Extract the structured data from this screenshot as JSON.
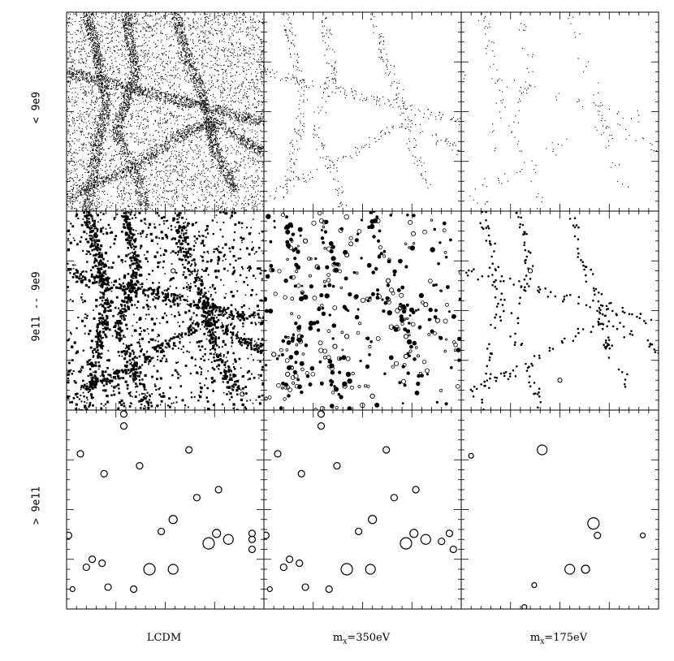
{
  "chart_data": {
    "type": "scatter",
    "layout": "3x3 grid of point-distribution panels, shared axes, no numeric tick labels",
    "tick_labels_shown": false,
    "row_labels": [
      "< 9e9",
      "9e11 -- 9e9",
      "> 9e11"
    ],
    "col_labels": {
      "lcdm": "LCDM",
      "m350": {
        "prefix": "m",
        "sub": "x",
        "suffix": "=350eV"
      },
      "m175": {
        "prefix": "m",
        "sub": "x",
        "suffix": "=175eV"
      }
    },
    "panels": [
      {
        "row": 0,
        "col": 0,
        "marker": "dot",
        "density": "very dense field with filamentary structure"
      },
      {
        "row": 0,
        "col": 1,
        "marker": "dot",
        "density": "sparse points along filaments"
      },
      {
        "row": 0,
        "col": 2,
        "marker": "dot",
        "density": "very sparse points along few filaments"
      },
      {
        "row": 1,
        "col": 0,
        "marker": "filled dot",
        "density": "dense"
      },
      {
        "row": 1,
        "col": 1,
        "marker": "small circles",
        "density": "moderate"
      },
      {
        "row": 1,
        "col": 2,
        "marker": "dot",
        "density": "sparse, along filaments"
      },
      {
        "row": 2,
        "col": 0,
        "marker": "open circle",
        "density": "~25 halos"
      },
      {
        "row": 2,
        "col": 1,
        "marker": "open circle",
        "density": "~25 halos"
      },
      {
        "row": 2,
        "col": 2,
        "marker": "open circle",
        "density": "~10 halos"
      }
    ],
    "halos_large": {
      "lcdm": [
        [
          0.29,
          0.02
        ],
        [
          0.07,
          0.22
        ],
        [
          0.29,
          0.08
        ],
        [
          0.42,
          0.8
        ],
        [
          0.72,
          0.67
        ],
        [
          0.37,
          0.28
        ],
        [
          0.19,
          0.32
        ],
        [
          0.13,
          0.75
        ],
        [
          0.62,
          0.2
        ],
        [
          0.18,
          0.77
        ],
        [
          0.54,
          0.55
        ],
        [
          0.76,
          0.62
        ],
        [
          0.77,
          0.4
        ],
        [
          0.94,
          0.62
        ],
        [
          0.94,
          0.65
        ],
        [
          0.48,
          0.61
        ],
        [
          0.66,
          0.44
        ],
        [
          0.82,
          0.65
        ],
        [
          0.94,
          0.7
        ],
        [
          0.1,
          0.79
        ],
        [
          0.21,
          0.89
        ],
        [
          0.34,
          0.9
        ],
        [
          0.54,
          0.8
        ],
        [
          0.01,
          0.63
        ],
        [
          0.03,
          0.9
        ]
      ],
      "m350": [
        [
          0.29,
          0.02
        ],
        [
          0.07,
          0.22
        ],
        [
          0.29,
          0.08
        ],
        [
          0.42,
          0.8
        ],
        [
          0.72,
          0.67
        ],
        [
          0.37,
          0.28
        ],
        [
          0.19,
          0.32
        ],
        [
          0.13,
          0.75
        ],
        [
          0.62,
          0.2
        ],
        [
          0.18,
          0.77
        ],
        [
          0.55,
          0.55
        ],
        [
          0.76,
          0.62
        ],
        [
          0.77,
          0.4
        ],
        [
          0.94,
          0.62
        ],
        [
          0.9,
          0.66
        ],
        [
          0.48,
          0.61
        ],
        [
          0.66,
          0.44
        ],
        [
          0.82,
          0.65
        ],
        [
          0.96,
          0.7
        ],
        [
          0.1,
          0.79
        ],
        [
          0.21,
          0.89
        ],
        [
          0.33,
          0.9
        ],
        [
          0.54,
          0.8
        ],
        [
          0.01,
          0.63
        ],
        [
          0.03,
          0.9
        ]
      ],
      "m175": [
        [
          0.41,
          0.2
        ],
        [
          0.05,
          0.23
        ],
        [
          0.67,
          0.57
        ],
        [
          0.69,
          0.63
        ],
        [
          0.92,
          0.63
        ],
        [
          0.55,
          0.8
        ],
        [
          0.63,
          0.8
        ],
        [
          0.37,
          0.88
        ],
        [
          0.32,
          0.99
        ]
      ]
    },
    "halo_sizes": {
      "lcdm": [
        4,
        4,
        4,
        7,
        7,
        4,
        4,
        4,
        4,
        4,
        5,
        5,
        4,
        4,
        4,
        4,
        4,
        6,
        4,
        4,
        4,
        4,
        6,
        4,
        3
      ],
      "m350": [
        4,
        4,
        4,
        7,
        7,
        4,
        4,
        4,
        4,
        4,
        5,
        5,
        4,
        4,
        4,
        4,
        4,
        6,
        4,
        4,
        4,
        4,
        6,
        4,
        3
      ],
      "m175": [
        6,
        3,
        7,
        4,
        3,
        6,
        5,
        3,
        3
      ]
    },
    "mid_halos": {
      "lcdm": [
        [
          0.17,
          0.28
        ],
        [
          0.54,
          0.3
        ],
        [
          0.89,
          0.92
        ]
      ],
      "m350": [
        [
          0.21,
          0.15
        ],
        [
          0.27,
          0.28
        ],
        [
          0.42,
          0.22
        ],
        [
          0.63,
          0.35
        ],
        [
          0.42,
          0.63
        ],
        [
          0.18,
          0.63
        ],
        [
          0.82,
          0.47
        ],
        [
          0.88,
          0.55
        ],
        [
          0.72,
          0.63
        ],
        [
          0.12,
          0.82
        ],
        [
          0.41,
          0.88
        ],
        [
          0.55,
          0.93
        ],
        [
          0.72,
          0.73
        ],
        [
          0.36,
          0.68
        ],
        [
          0.05,
          0.72
        ]
      ],
      "m175": [
        [
          0.35,
          0.3
        ],
        [
          0.5,
          0.85
        ]
      ]
    },
    "filament_strength": [
      1.0,
      0.35,
      0.2
    ]
  }
}
